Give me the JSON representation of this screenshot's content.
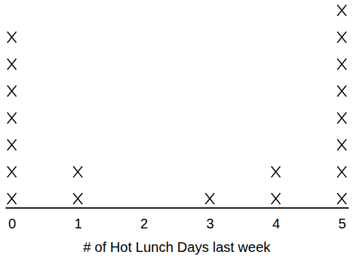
{
  "chart_data": {
    "type": "dot",
    "xlabel": "# of Hot Lunch Days last week",
    "x": [
      0,
      1,
      2,
      3,
      4,
      5
    ],
    "values": [
      7,
      2,
      0,
      1,
      2,
      8
    ],
    "xlim": [
      -0.1,
      5.1
    ],
    "xticks": [
      0,
      1,
      2,
      3,
      4,
      5
    ],
    "marker": "x",
    "color": "#000000",
    "grid": false,
    "tick_labels": "x"
  }
}
